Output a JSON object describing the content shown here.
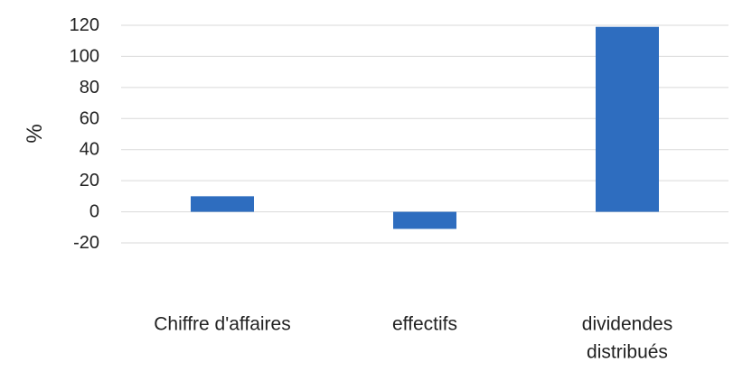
{
  "chart_data": {
    "type": "bar",
    "categories": [
      "Chiffre d'affaires",
      "effectifs",
      "dividendes distribués"
    ],
    "category_label_lines": [
      [
        "Chiffre d'affaires"
      ],
      [
        "effectifs"
      ],
      [
        "dividendes",
        "distribués"
      ]
    ],
    "values": [
      10,
      -11,
      119
    ],
    "ylabel": "%",
    "ylim": [
      -20,
      120
    ],
    "yticks": [
      -20,
      0,
      20,
      40,
      60,
      80,
      100,
      120
    ],
    "grid": true,
    "bar_color": "#2E6DBF",
    "grid_color": "#D9D9D9"
  }
}
